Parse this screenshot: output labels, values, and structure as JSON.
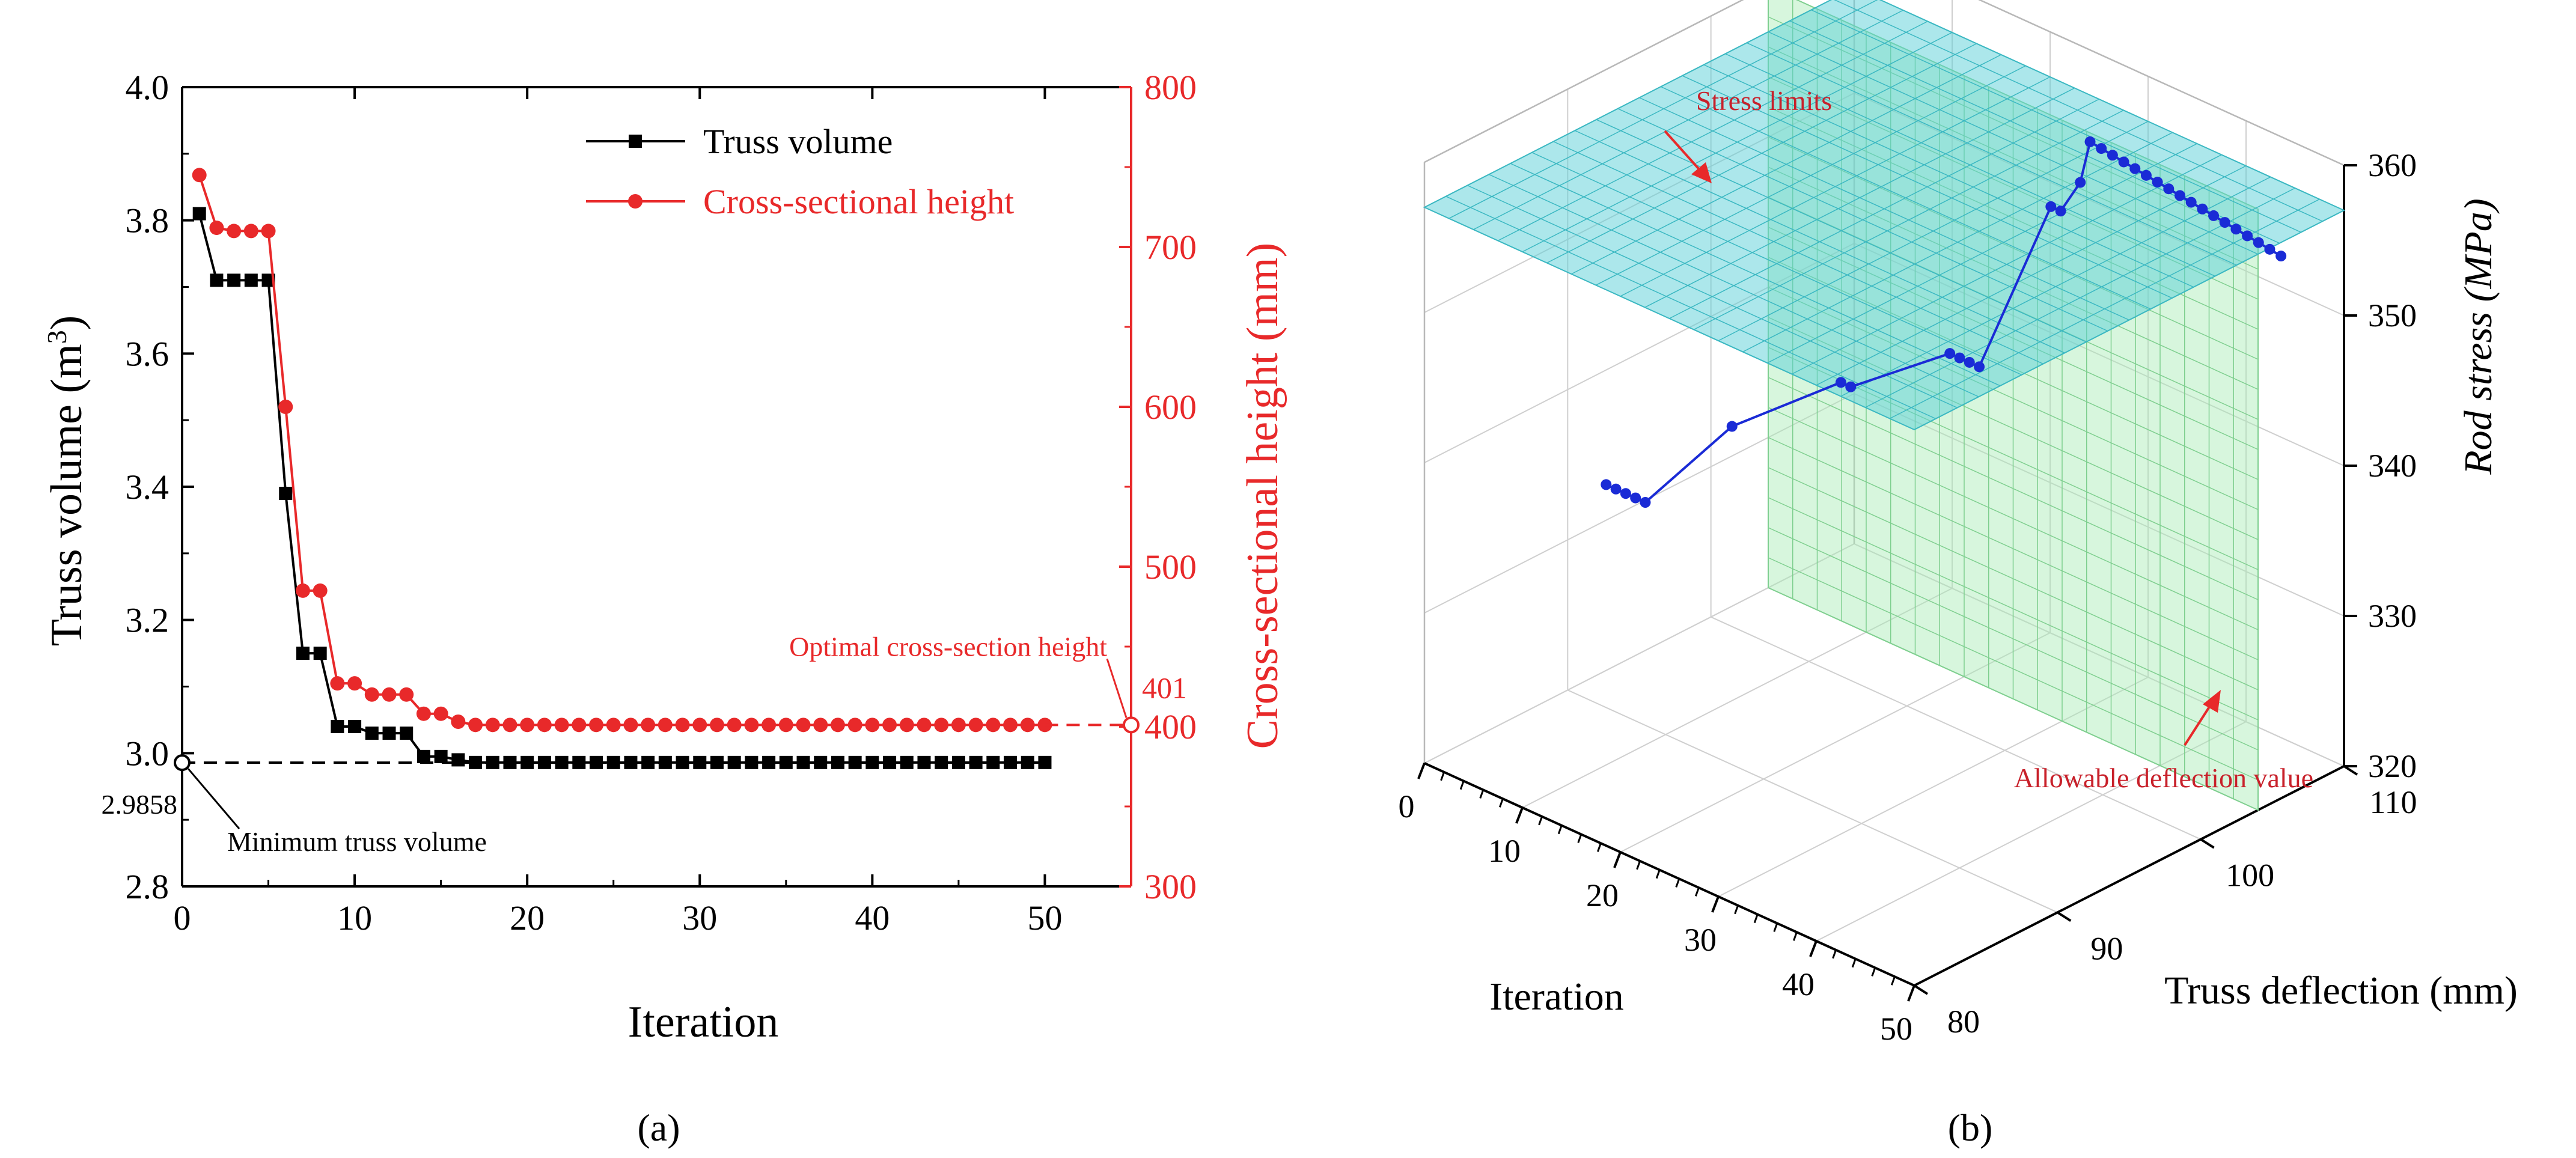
{
  "panel_a": {
    "caption": "(a)",
    "chart_data": {
      "type": "line",
      "title": "",
      "xlabel": "Iteration",
      "ylabel": "Truss volume (m³)",
      "ylabel_text": "Truss volume (m",
      "ylabel_sup": "3",
      "ylabel_close": ")",
      "y2label": "Cross-sectional height (mm)",
      "xlim": [
        0,
        55
      ],
      "ylim": [
        2.8,
        4.0
      ],
      "y2lim": [
        300,
        800
      ],
      "xticks": [
        "0",
        "10",
        "20",
        "30",
        "40",
        "50"
      ],
      "yticks": [
        "2.8",
        "3.0",
        "3.2",
        "3.4",
        "3.6",
        "3.8",
        "4.0"
      ],
      "y2ticks": [
        "300",
        "400",
        "500",
        "600",
        "700",
        "800"
      ],
      "legend_position": "top-right",
      "x": [
        1,
        2,
        3,
        4,
        5,
        6,
        7,
        8,
        9,
        10,
        11,
        12,
        13,
        14,
        15,
        16,
        17,
        18,
        19,
        20,
        21,
        22,
        23,
        24,
        25,
        26,
        27,
        28,
        29,
        30,
        31,
        32,
        33,
        34,
        35,
        36,
        37,
        38,
        39,
        40,
        41,
        42,
        43,
        44,
        45,
        46,
        47,
        48,
        49,
        50
      ],
      "series": [
        {
          "name": "Truss volume",
          "axis": "left",
          "color": "#000000",
          "marker": "square",
          "values": [
            3.81,
            3.71,
            3.71,
            3.71,
            3.71,
            3.39,
            3.15,
            3.15,
            3.04,
            3.04,
            3.03,
            3.03,
            3.03,
            2.995,
            2.995,
            2.99,
            2.986,
            2.986,
            2.986,
            2.986,
            2.986,
            2.986,
            2.986,
            2.986,
            2.986,
            2.986,
            2.986,
            2.986,
            2.986,
            2.986,
            2.986,
            2.986,
            2.986,
            2.986,
            2.986,
            2.986,
            2.986,
            2.986,
            2.986,
            2.986,
            2.986,
            2.986,
            2.986,
            2.986,
            2.986,
            2.986,
            2.986,
            2.986,
            2.986,
            2.986
          ]
        },
        {
          "name": "Cross-sectional height",
          "axis": "right",
          "color": "#e8292a",
          "marker": "circle",
          "values": [
            745,
            712,
            710,
            710,
            710,
            600,
            485,
            485,
            427,
            427,
            420,
            420,
            420,
            408,
            408,
            403,
            401,
            401,
            401,
            401,
            401,
            401,
            401,
            401,
            401,
            401,
            401,
            401,
            401,
            401,
            401,
            401,
            401,
            401,
            401,
            401,
            401,
            401,
            401,
            401,
            401,
            401,
            401,
            401,
            401,
            401,
            401,
            401,
            401,
            401
          ]
        }
      ],
      "annotations": {
        "min_volume_label": "Minimum truss volume",
        "min_volume_value": "2.9858",
        "min_volume": 2.9858,
        "opt_height_label": "Optimal cross-section height",
        "opt_height_value": "401",
        "opt_height": 401
      }
    }
  },
  "panel_b": {
    "caption": "(b)",
    "chart_data": {
      "type": "scatter3d",
      "title": "",
      "xlabel": "Iteration",
      "ylabel": "Truss deflection (mm)",
      "zlabel": "Rod stress (MPa)",
      "zlabel_text": "Rod stress (",
      "zlabel_unit": "MPa",
      "zlabel_close": ")",
      "xlim": [
        0,
        50
      ],
      "ylim": [
        80,
        110
      ],
      "zlim": [
        320,
        360
      ],
      "xticks": [
        "0",
        "10",
        "20",
        "30",
        "40",
        "50"
      ],
      "yticks": [
        "80",
        "90",
        "100",
        "110"
      ],
      "zticks": [
        "320",
        "330",
        "340",
        "350",
        "360"
      ],
      "series_color": "#1a2bd6",
      "points": [
        {
          "x": 1,
          "y": 92,
          "z": 333
        },
        {
          "x": 2,
          "y": 92,
          "z": 333
        },
        {
          "x": 3,
          "y": 92,
          "z": 333
        },
        {
          "x": 4,
          "y": 92,
          "z": 333
        },
        {
          "x": 5,
          "y": 92,
          "z": 333
        },
        {
          "x": 8,
          "y": 96,
          "z": 337
        },
        {
          "x": 14,
          "y": 99.5,
          "z": 340
        },
        {
          "x": 15,
          "y": 99.5,
          "z": 340
        },
        {
          "x": 20,
          "y": 103,
          "z": 342
        },
        {
          "x": 21,
          "y": 103,
          "z": 342
        },
        {
          "x": 22,
          "y": 103,
          "z": 342
        },
        {
          "x": 23,
          "y": 103,
          "z": 342
        },
        {
          "x": 29,
          "y": 103.9,
          "z": 354
        },
        {
          "x": 30,
          "y": 103.9,
          "z": 354
        },
        {
          "x": 32,
          "y": 103.9,
          "z": 356.5
        },
        {
          "x": 33,
          "y": 103.9,
          "z": 359.5
        },
        {
          "x": 34,
          "y": 104,
          "z": 359.3
        },
        {
          "x": 35,
          "y": 104.1,
          "z": 359.1
        },
        {
          "x": 36,
          "y": 104.2,
          "z": 358.9
        },
        {
          "x": 37,
          "y": 104.3,
          "z": 358.7
        },
        {
          "x": 38,
          "y": 104.4,
          "z": 358.5
        },
        {
          "x": 39,
          "y": 104.5,
          "z": 358.3
        },
        {
          "x": 40,
          "y": 104.6,
          "z": 358.1
        },
        {
          "x": 41,
          "y": 104.7,
          "z": 357.9
        },
        {
          "x": 42,
          "y": 104.8,
          "z": 357.7
        },
        {
          "x": 43,
          "y": 104.9,
          "z": 357.5
        },
        {
          "x": 44,
          "y": 105,
          "z": 357.3
        },
        {
          "x": 45,
          "y": 105.1,
          "z": 357.1
        },
        {
          "x": 46,
          "y": 105.2,
          "z": 356.9
        },
        {
          "x": 47,
          "y": 105.3,
          "z": 356.7
        },
        {
          "x": 48,
          "y": 105.4,
          "z": 356.5
        },
        {
          "x": 49,
          "y": 105.5,
          "z": 356.3
        },
        {
          "x": 50,
          "y": 105.6,
          "z": 356.1
        }
      ],
      "planes": {
        "stress_limit": {
          "label": "Stress limits",
          "z": 357,
          "color": "#5ad0d8"
        },
        "deflection_limit": {
          "label": "Allowable deflection value",
          "y": 104,
          "color": "#a6ecb4"
        }
      }
    }
  }
}
